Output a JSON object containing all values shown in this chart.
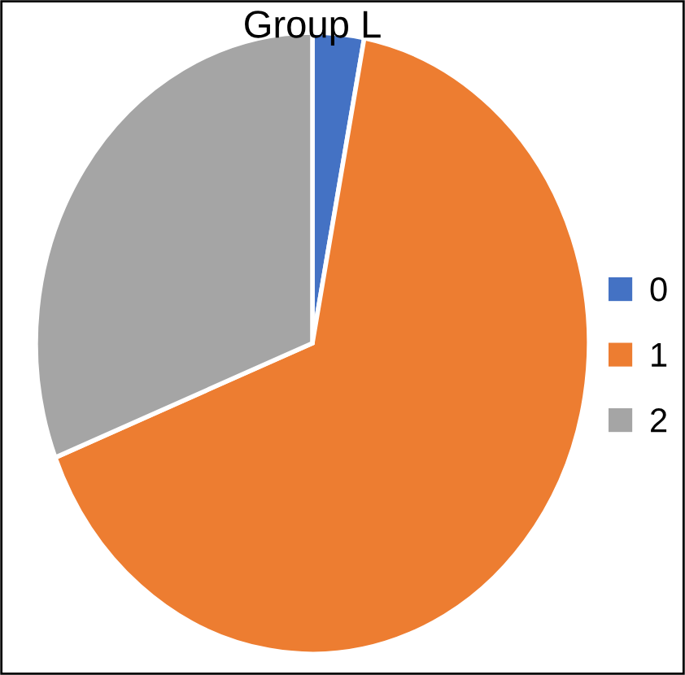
{
  "chart_data": {
    "type": "pie",
    "title": "Group L",
    "categories": [
      "0",
      "1",
      "2"
    ],
    "values": [
      3,
      66,
      31
    ],
    "colors": [
      "#4472c4",
      "#ed7d31",
      "#a5a5a5"
    ],
    "legend": "right"
  }
}
